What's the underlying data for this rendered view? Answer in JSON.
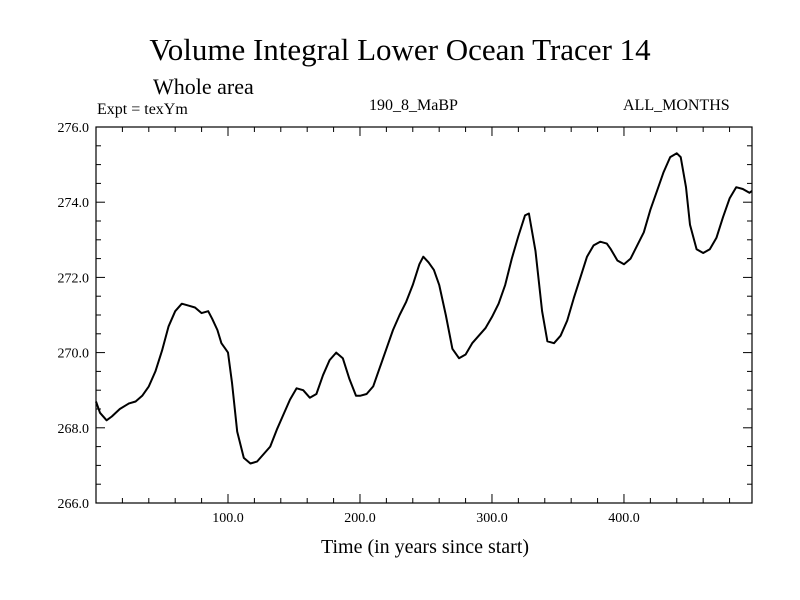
{
  "header": {
    "title": "Volume Integral Lower Ocean Tracer 14",
    "subtitle": "Whole area",
    "expt": "Expt = texYm",
    "case": "190_8_MaBP",
    "months": "ALL_MONTHS"
  },
  "chart_data": {
    "type": "line",
    "xlabel": "Time (in years since start)",
    "ylabel": "",
    "xlim": [
      0,
      497
    ],
    "ylim": [
      266.0,
      276.0
    ],
    "xticks": [
      100.0,
      200.0,
      300.0,
      400.0
    ],
    "xtick_labels": [
      "100.0",
      "200.0",
      "300.0",
      "400.0"
    ],
    "yticks": [
      266.0,
      268.0,
      270.0,
      272.0,
      274.0,
      276.0
    ],
    "ytick_labels": [
      "266.0",
      "268.0",
      "270.0",
      "272.0",
      "274.0",
      "276.0"
    ],
    "grid": false,
    "line_color": "#000000",
    "series": [
      {
        "x": [
          0,
          3,
          8,
          12,
          18,
          25,
          30,
          35,
          40,
          45,
          50,
          55,
          60,
          65,
          70,
          75,
          80,
          85,
          88,
          92,
          95,
          98,
          100,
          103,
          107,
          112,
          117,
          122,
          127,
          132,
          137,
          142,
          147,
          152,
          157,
          162,
          167,
          172,
          177,
          182,
          187,
          192,
          197,
          200,
          205,
          210,
          215,
          220,
          225,
          230,
          235,
          240,
          245,
          248,
          252,
          256,
          260,
          265,
          270,
          275,
          280,
          285,
          290,
          295,
          300,
          305,
          310,
          315,
          320,
          325,
          328,
          333,
          338,
          342,
          347,
          352,
          357,
          362,
          367,
          372,
          377,
          382,
          387,
          390,
          395,
          400,
          405,
          410,
          415,
          420,
          425,
          430,
          435,
          440,
          443,
          447,
          450,
          455,
          460,
          465,
          470,
          475,
          480,
          485,
          490,
          495,
          497
        ],
        "values": [
          268.7,
          268.4,
          268.2,
          268.3,
          268.5,
          268.65,
          268.7,
          268.85,
          269.1,
          269.5,
          270.05,
          270.7,
          271.1,
          271.3,
          271.25,
          271.2,
          271.05,
          271.1,
          270.9,
          270.6,
          270.25,
          270.1,
          270.0,
          269.2,
          267.9,
          267.2,
          267.05,
          267.1,
          267.3,
          267.5,
          267.95,
          268.35,
          268.75,
          269.05,
          269.0,
          268.8,
          268.9,
          269.4,
          269.8,
          270.0,
          269.85,
          269.3,
          268.85,
          268.85,
          268.9,
          269.1,
          269.6,
          270.1,
          270.6,
          271.0,
          271.35,
          271.8,
          272.35,
          272.55,
          272.4,
          272.2,
          271.8,
          271.0,
          270.1,
          269.85,
          269.95,
          270.25,
          270.45,
          270.65,
          270.95,
          271.3,
          271.8,
          272.5,
          273.1,
          273.65,
          273.7,
          272.7,
          271.1,
          270.3,
          270.25,
          270.45,
          270.85,
          271.45,
          272.0,
          272.55,
          272.85,
          272.95,
          272.9,
          272.75,
          272.45,
          272.35,
          272.5,
          272.85,
          273.2,
          273.8,
          274.3,
          274.8,
          275.2,
          275.3,
          275.2,
          274.4,
          273.4,
          272.75,
          272.65,
          272.75,
          273.05,
          273.6,
          274.1,
          274.4,
          274.35,
          274.25,
          274.3
        ]
      }
    ]
  }
}
